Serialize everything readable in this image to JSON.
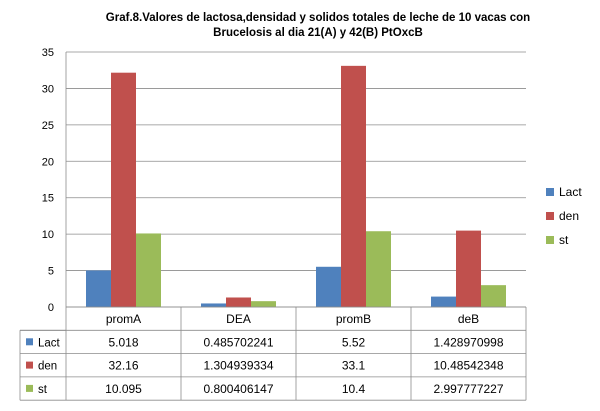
{
  "chart_data": {
    "type": "bar",
    "title_line1": "Graf.8.Valores de lactosa,densidad y solidos totales  de leche de 10 vacas  con",
    "title_line2": "Brucelosis  al dia 21(A) y 42(B) PtOxcB",
    "categories": [
      "promA",
      "DEA",
      "promB",
      "deB"
    ],
    "series": [
      {
        "name": "Lact",
        "color": "#4F81BD",
        "values": [
          5.018,
          0.485702241,
          5.52,
          1.428970998
        ]
      },
      {
        "name": "den",
        "color": "#C0504D",
        "values": [
          32.16,
          1.304939334,
          33.1,
          10.48542348
        ]
      },
      {
        "name": "st",
        "color": "#9BBB59",
        "values": [
          10.095,
          0.800406147,
          10.4,
          2.997777227
        ]
      }
    ],
    "table_text": [
      [
        "5.018",
        "0.485702241",
        "5.52",
        "1.428970998"
      ],
      [
        "32.16",
        "1.304939334",
        "33.1",
        "10.48542348"
      ],
      [
        "10.095",
        "0.800406147",
        "10.4",
        "2.997777227"
      ]
    ],
    "y_ticks": [
      "0",
      "5",
      "10",
      "15",
      "20",
      "25",
      "30",
      "35"
    ],
    "ylim": [
      0,
      35
    ],
    "grid": true,
    "legend_position": "right",
    "data_table": true
  }
}
